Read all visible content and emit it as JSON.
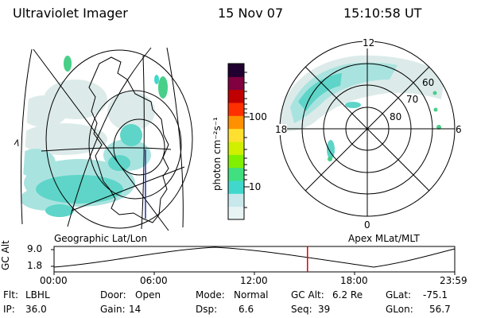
{
  "header": {
    "instrument": "Ultraviolet Imager",
    "date": "15 Nov 07",
    "time": "15:10:58 UT"
  },
  "geo_panel": {
    "caption": "Geographic Lat/Lon"
  },
  "polar_panel": {
    "caption": "Apex MLat/MLT",
    "mlt_labels": {
      "top": "12",
      "bottom": "0",
      "left": "18",
      "right": "6"
    },
    "lat_labels": [
      "60",
      "70",
      "80"
    ]
  },
  "colorbar": {
    "label": "photon cm⁻²s⁻¹",
    "ticks": [
      "100",
      "10"
    ],
    "scale": "log",
    "colors": [
      "#e8f4f4",
      "#c8e8ec",
      "#40d8cc",
      "#40e080",
      "#80f000",
      "#d0f000",
      "#ffe030",
      "#ff9000",
      "#ff3000",
      "#c00000",
      "#800040",
      "#200030"
    ]
  },
  "altitude_plot": {
    "ylabel": "GC Alt",
    "yticks": [
      "9.0",
      "1.8"
    ],
    "xticks": [
      "00:00",
      "06:00",
      "12:00",
      "18:00",
      "23:59"
    ],
    "cursor_hours": 15.18
  },
  "status": {
    "filter_label": "Flt:",
    "filter_value": "LBHL",
    "door_label": "Door:",
    "door_value": "Open",
    "mode_label": "Mode:",
    "mode_value": "Normal",
    "gcalt_label": "GC Alt:",
    "gcalt_value": "6.2 Re",
    "glat_label": "GLat:",
    "glat_value": "-75.1",
    "ip_label": "IP:",
    "ip_value": "36.0",
    "gain_label": "Gain:",
    "gain_value": "14",
    "dsp_label": "Dsp:",
    "dsp_value": "6.6",
    "seq_label": "Seq:",
    "seq_value": "39",
    "glon_label": "GLon:",
    "glon_value": "56.7"
  }
}
